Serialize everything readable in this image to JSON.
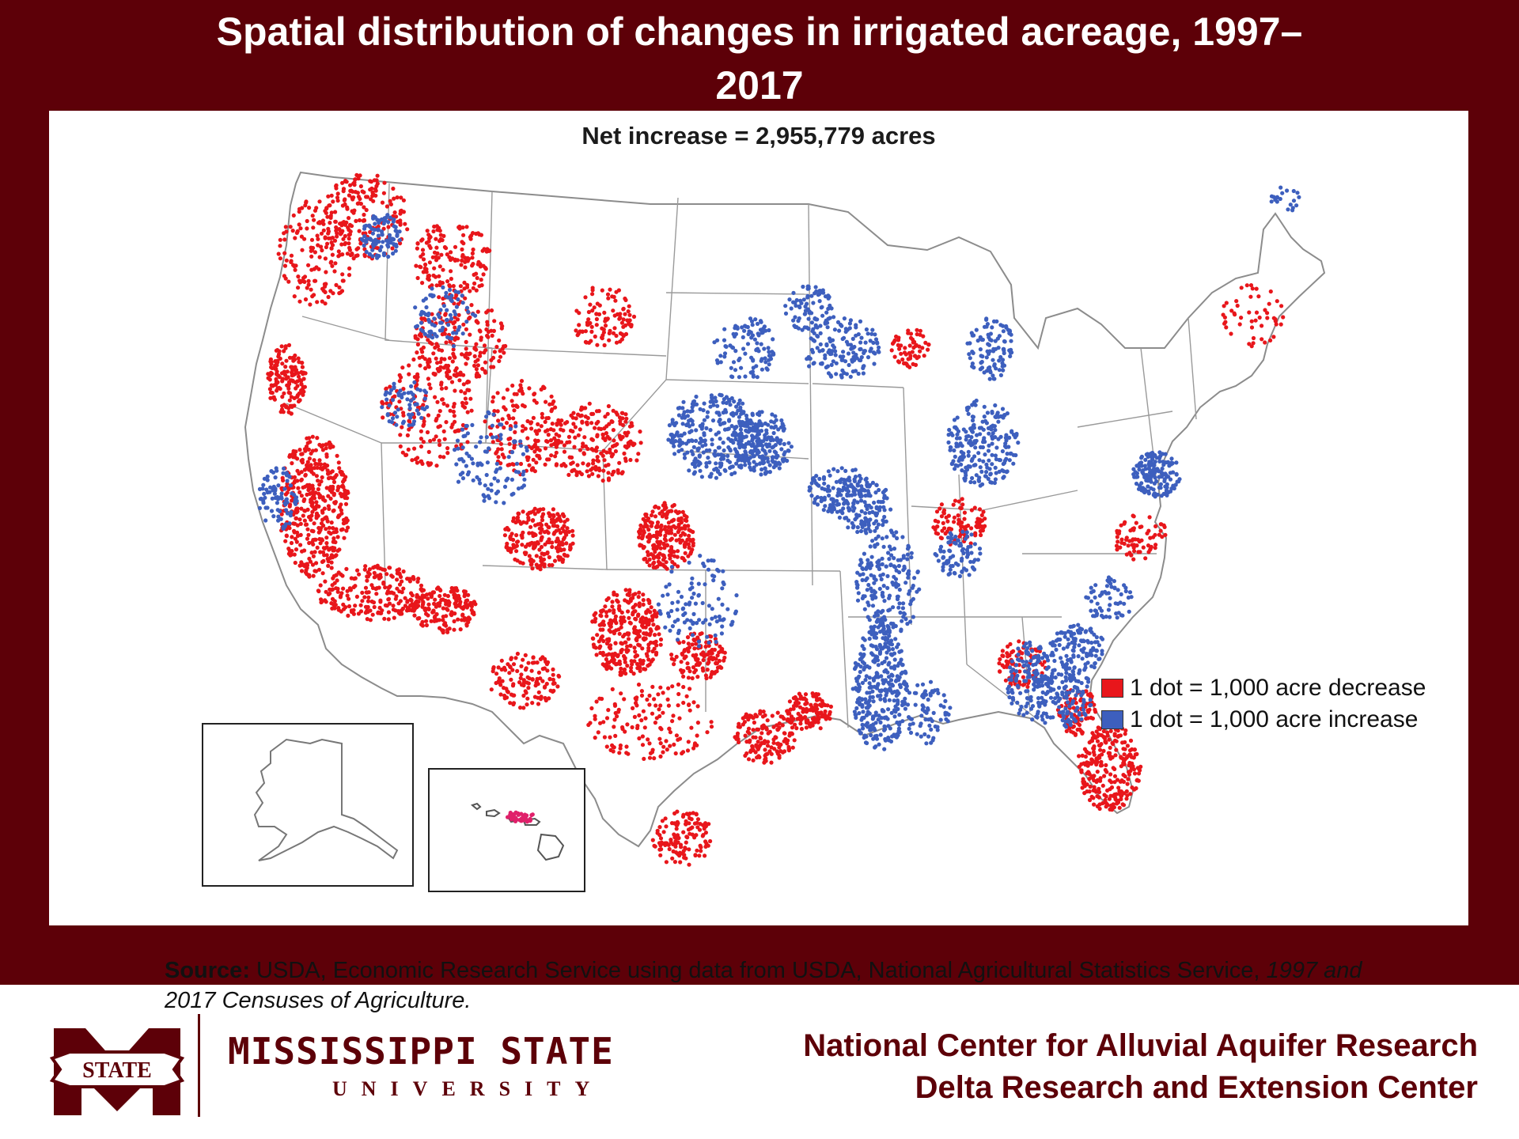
{
  "title": {
    "line1": "Spatial distribution of changes in irrigated acreage, 1997–",
    "line2": "2017"
  },
  "subtitle": "Net increase = 2,955,779 acres",
  "legend": {
    "decrease_label": "1 dot = 1,000 acre decrease",
    "increase_label": "1 dot = 1,000 acre increase",
    "decrease_color": "#e8161b",
    "increase_color": "#3d5fbe"
  },
  "source": {
    "label": "Source:",
    "text": "USDA, Economic Research Service using data from USDA, National Agricultural Statistics Service,",
    "italic": "1997 and 2017 Censuses of Agriculture."
  },
  "branding": {
    "university": "MISSISSIPPI STATE",
    "university_sub": "UNIVERSITY",
    "logo_text": "STATE",
    "center_line1": "National Center for Alluvial Aquifer Research",
    "center_line2": "Delta Research and Extension Center"
  },
  "colors": {
    "maroon": "#5d0008",
    "decrease_red": "#e8161b",
    "increase_blue": "#3d5fbe"
  }
}
